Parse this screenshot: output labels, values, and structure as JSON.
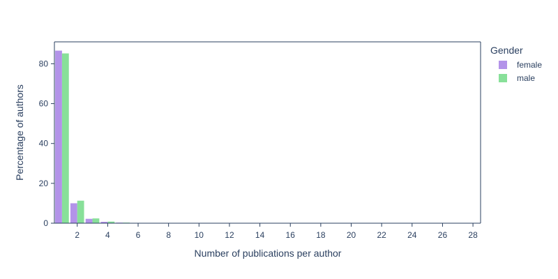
{
  "chart_data": {
    "type": "bar",
    "xlabel": "Number of publications per author",
    "ylabel": "Percentage of authors",
    "xlim": [
      0.5,
      28.5
    ],
    "ylim": [
      0,
      91
    ],
    "xticks": [
      2,
      4,
      6,
      8,
      10,
      12,
      14,
      16,
      18,
      20,
      22,
      24,
      26,
      28
    ],
    "yticks": [
      0,
      20,
      40,
      60,
      80
    ],
    "grid": false,
    "legend": {
      "title": "Gender",
      "position": "right"
    },
    "x": [
      1,
      2,
      3,
      4,
      5,
      6,
      7,
      8,
      9,
      10,
      11,
      12,
      13,
      14,
      15,
      16,
      17,
      18,
      19,
      20,
      21,
      22,
      23,
      24,
      25,
      26,
      27,
      28
    ],
    "series": [
      {
        "name": "female",
        "color": "#b393e9",
        "values": [
          86.6,
          10.0,
          2.2,
          0.7,
          0.3,
          0.1,
          0.05,
          0.03,
          0.02,
          0.01,
          0.01,
          0.01,
          0.01,
          0.0,
          0.0,
          0.0,
          0.0,
          0.0,
          0.0,
          0.0,
          0.0,
          0.0,
          0.0,
          0.0,
          0.0,
          0.0,
          0.0,
          0.0
        ]
      },
      {
        "name": "male",
        "color": "#88e099",
        "values": [
          85.2,
          11.3,
          2.4,
          0.8,
          0.3,
          0.15,
          0.08,
          0.05,
          0.03,
          0.02,
          0.02,
          0.01,
          0.01,
          0.01,
          0.01,
          0.01,
          0.0,
          0.0,
          0.0,
          0.0,
          0.0,
          0.0,
          0.0,
          0.0,
          0.0,
          0.0,
          0.0,
          0.01
        ]
      }
    ]
  }
}
